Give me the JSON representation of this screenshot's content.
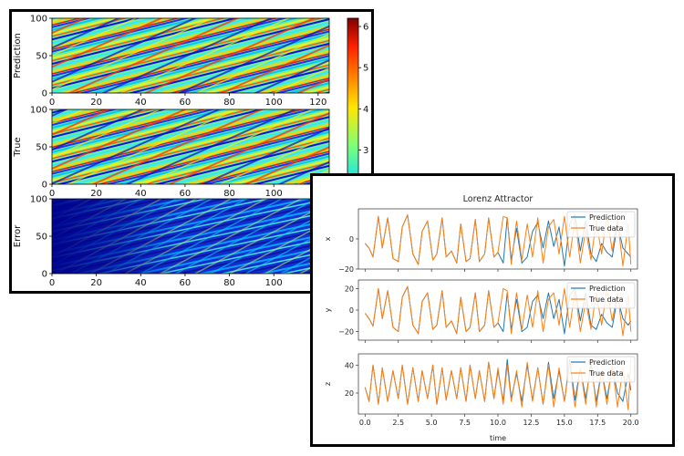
{
  "chart_data": [
    {
      "type": "heatmap",
      "panels": [
        {
          "ylabel": "Prediction",
          "xticks": [
            "0",
            "20",
            "40",
            "60",
            "80",
            "100",
            "120"
          ],
          "yticks": [
            "0",
            "50",
            "100"
          ],
          "xlim": [
            0,
            125
          ],
          "ylim": [
            0,
            100
          ]
        },
        {
          "ylabel": "True",
          "xticks": [
            "0",
            "20",
            "40",
            "60",
            "80",
            "100",
            "120"
          ],
          "yticks": [
            "0",
            "50",
            "100"
          ],
          "xlim": [
            0,
            125
          ],
          "ylim": [
            0,
            100
          ]
        },
        {
          "ylabel": "Error",
          "xticks": [
            "0",
            "20",
            "40",
            "60",
            "80",
            "100"
          ],
          "yticks": [
            "0",
            "50",
            "100"
          ],
          "xlim": [
            0,
            125
          ],
          "ylim": [
            0,
            100
          ]
        }
      ],
      "colorbar": {
        "colormap": "jet",
        "ticks": [
          "2",
          "3",
          "4",
          "5",
          "6"
        ],
        "range": [
          0,
          6.2
        ]
      }
    },
    {
      "type": "line",
      "title": "Lorenz Attractor",
      "xlabel": "time",
      "xlim": [
        -0.5,
        20.5
      ],
      "xticks": [
        "0.0",
        "2.5",
        "5.0",
        "7.5",
        "10.0",
        "12.5",
        "15.0",
        "17.5",
        "20.0"
      ],
      "legend_placement": "top-right",
      "subplots": [
        {
          "ylabel": "x",
          "yticks": [
            "−20",
            "0"
          ],
          "ylim": [
            -20,
            20
          ],
          "series": [
            {
              "name": "Prediction",
              "color": "#1f77b4",
              "x": [
                0,
                0.3,
                0.6,
                1,
                1.3,
                1.7,
                2.1,
                2.5,
                2.8,
                3.2,
                3.6,
                4,
                4.3,
                4.7,
                5.1,
                5.4,
                5.8,
                6.1,
                6.5,
                6.9,
                7.2,
                7.6,
                7.9,
                8.3,
                8.6,
                9,
                9.3,
                9.7,
                10,
                10.4,
                10.7,
                11,
                11.4,
                11.8,
                12.2,
                12.6,
                13,
                13.4,
                13.8,
                14.2,
                14.6,
                15,
                15.4,
                15.8,
                16.2,
                16.6,
                17,
                17.4,
                17.8,
                18.2,
                18.6,
                19,
                19.4,
                19.8,
                20
              ],
              "y": [
                -3,
                -6,
                -12,
                15,
                -6,
                14,
                -13,
                -15,
                8,
                16,
                -10,
                -17,
                5,
                12,
                -14,
                -10,
                14,
                -12,
                -8,
                -16,
                10,
                -15,
                -13,
                13,
                -15,
                -10,
                14,
                -12,
                -9,
                -16,
                14,
                -14,
                7,
                -16,
                -12,
                5,
                11,
                -6,
                12,
                -5,
                8,
                -18,
                10,
                16,
                -8,
                12,
                -10,
                -15,
                -3,
                -9,
                -12,
                10,
                -6,
                -10,
                -12
              ]
            },
            {
              "name": "True data",
              "color": "#ff7f0e",
              "x": [
                0,
                0.3,
                0.6,
                1,
                1.3,
                1.7,
                2.1,
                2.5,
                2.8,
                3.2,
                3.6,
                4,
                4.3,
                4.7,
                5.1,
                5.4,
                5.8,
                6.1,
                6.5,
                6.9,
                7.2,
                7.6,
                7.9,
                8.3,
                8.6,
                9,
                9.3,
                9.7,
                10,
                10.4,
                10.7,
                11,
                11.4,
                11.8,
                12.2,
                12.6,
                13,
                13.4,
                13.8,
                14.2,
                14.6,
                15,
                15.4,
                15.8,
                16.2,
                16.6,
                17,
                17.4,
                17.8,
                18.2,
                18.6,
                19,
                19.4,
                19.8,
                20
              ],
              "y": [
                -3,
                -6,
                -12,
                15,
                -6,
                14,
                -13,
                -15,
                8,
                16,
                -10,
                -17,
                5,
                12,
                -14,
                -10,
                14,
                -12,
                -8,
                -16,
                10,
                -15,
                -13,
                13,
                -15,
                -10,
                14,
                -12,
                -9,
                15,
                14,
                -17,
                12,
                -14,
                10,
                -12,
                14,
                -16,
                8,
                13,
                -10,
                15,
                -12,
                14,
                -16,
                6,
                -14,
                12,
                -10,
                16,
                -8,
                13,
                -18,
                10,
                -17
              ]
            }
          ]
        },
        {
          "ylabel": "y",
          "yticks": [
            "−20",
            "0",
            "20"
          ],
          "ylim": [
            -28,
            28
          ],
          "series": [
            {
              "name": "Prediction",
              "color": "#1f77b4",
              "x": [
                0,
                0.3,
                0.6,
                1,
                1.3,
                1.7,
                2.1,
                2.5,
                2.8,
                3.2,
                3.6,
                4,
                4.3,
                4.7,
                5.1,
                5.4,
                5.8,
                6.1,
                6.5,
                6.9,
                7.2,
                7.6,
                7.9,
                8.3,
                8.6,
                9,
                9.3,
                9.7,
                10,
                10.4,
                10.7,
                11,
                11.4,
                11.8,
                12.2,
                12.6,
                13,
                13.4,
                13.8,
                14.2,
                14.6,
                15,
                15.4,
                15.8,
                16.2,
                16.6,
                17,
                17.4,
                17.8,
                18.2,
                18.6,
                19,
                19.4,
                19.8,
                20
              ],
              "y": [
                -3,
                -8,
                -15,
                20,
                -8,
                18,
                -16,
                -20,
                12,
                22,
                -14,
                -22,
                8,
                16,
                -18,
                -14,
                18,
                -16,
                -10,
                -22,
                12,
                -20,
                -16,
                16,
                -20,
                -14,
                18,
                -16,
                -12,
                -20,
                16,
                -18,
                10,
                -20,
                -16,
                8,
                14,
                -8,
                16,
                -8,
                10,
                -22,
                14,
                20,
                -10,
                16,
                -14,
                -18,
                -4,
                -12,
                -16,
                12,
                -8,
                -14,
                -10
              ]
            },
            {
              "name": "True data",
              "color": "#ff7f0e",
              "x": [
                0,
                0.3,
                0.6,
                1,
                1.3,
                1.7,
                2.1,
                2.5,
                2.8,
                3.2,
                3.6,
                4,
                4.3,
                4.7,
                5.1,
                5.4,
                5.8,
                6.1,
                6.5,
                6.9,
                7.2,
                7.6,
                7.9,
                8.3,
                8.6,
                9,
                9.3,
                9.7,
                10,
                10.4,
                10.7,
                11,
                11.4,
                11.8,
                12.2,
                12.6,
                13,
                13.4,
                13.8,
                14.2,
                14.6,
                15,
                15.4,
                15.8,
                16.2,
                16.6,
                17,
                17.4,
                17.8,
                18.2,
                18.6,
                19,
                19.4,
                19.8,
                20
              ],
              "y": [
                -3,
                -8,
                -15,
                20,
                -8,
                18,
                -16,
                -20,
                12,
                22,
                -14,
                -22,
                8,
                16,
                -18,
                -14,
                18,
                -16,
                -10,
                -22,
                12,
                -20,
                -16,
                16,
                -20,
                -14,
                18,
                -16,
                -12,
                20,
                18,
                -22,
                16,
                -18,
                14,
                -16,
                18,
                -20,
                10,
                16,
                -14,
                20,
                -16,
                18,
                -20,
                8,
                -18,
                16,
                -14,
                20,
                -10,
                16,
                -24,
                14,
                -20
              ]
            }
          ]
        },
        {
          "ylabel": "z",
          "yticks": [
            "20",
            "40"
          ],
          "ylim": [
            5,
            48
          ],
          "series": [
            {
              "name": "Prediction",
              "color": "#1f77b4",
              "x": [
                0,
                0.3,
                0.6,
                1,
                1.3,
                1.7,
                2.1,
                2.5,
                2.8,
                3.2,
                3.6,
                4,
                4.3,
                4.7,
                5.1,
                5.4,
                5.8,
                6.1,
                6.5,
                6.9,
                7.2,
                7.6,
                7.9,
                8.3,
                8.6,
                9,
                9.3,
                9.7,
                10,
                10.4,
                10.7,
                11,
                11.4,
                11.8,
                12.2,
                12.6,
                13,
                13.4,
                13.8,
                14.2,
                14.6,
                15,
                15.4,
                15.8,
                16.2,
                16.6,
                17,
                17.4,
                17.8,
                18.2,
                18.6,
                19,
                19.4,
                19.8,
                20
              ],
              "y": [
                24,
                14,
                40,
                12,
                38,
                14,
                36,
                16,
                40,
                12,
                38,
                14,
                36,
                16,
                40,
                12,
                38,
                15,
                36,
                16,
                38,
                14,
                40,
                16,
                36,
                14,
                42,
                16,
                36,
                14,
                44,
                16,
                34,
                14,
                40,
                15,
                38,
                12,
                42,
                16,
                36,
                14,
                44,
                15,
                38,
                16,
                40,
                14,
                36,
                16,
                38,
                20,
                14,
                34,
                22
              ]
            },
            {
              "name": "True data",
              "color": "#ff7f0e",
              "x": [
                0,
                0.3,
                0.6,
                1,
                1.3,
                1.7,
                2.1,
                2.5,
                2.8,
                3.2,
                3.6,
                4,
                4.3,
                4.7,
                5.1,
                5.4,
                5.8,
                6.1,
                6.5,
                6.9,
                7.2,
                7.6,
                7.9,
                8.3,
                8.6,
                9,
                9.3,
                9.7,
                10,
                10.4,
                10.7,
                11,
                11.4,
                11.8,
                12.2,
                12.6,
                13,
                13.4,
                13.8,
                14.2,
                14.6,
                15,
                15.4,
                15.8,
                16.2,
                16.6,
                17,
                17.4,
                17.8,
                18.2,
                18.6,
                19,
                19.4,
                19.8,
                20
              ],
              "y": [
                24,
                14,
                40,
                12,
                38,
                14,
                36,
                16,
                40,
                12,
                38,
                14,
                36,
                16,
                40,
                12,
                38,
                15,
                36,
                16,
                38,
                14,
                40,
                16,
                36,
                14,
                42,
                16,
                38,
                12,
                40,
                14,
                36,
                10,
                42,
                14,
                38,
                12,
                40,
                10,
                38,
                14,
                42,
                10,
                38,
                12,
                44,
                10,
                36,
                12,
                40,
                10,
                38,
                8,
                44
              ]
            }
          ]
        }
      ]
    }
  ]
}
